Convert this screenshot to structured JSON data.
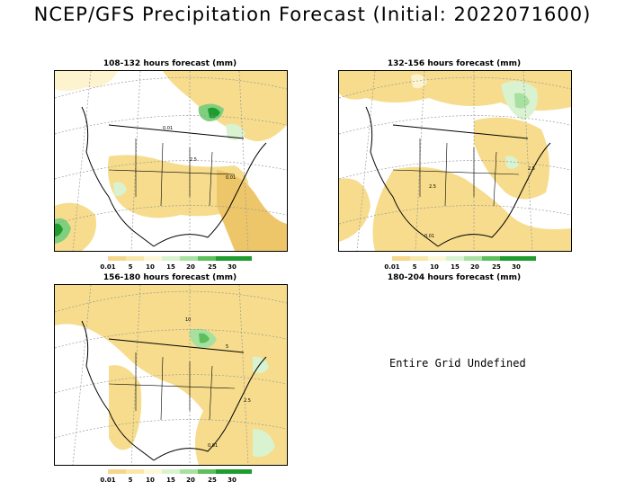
{
  "title": "NCEP/GFS Precipitation Forecast (Initial: 2022071600)",
  "panels": [
    {
      "title": "108-132 hours forecast (mm)"
    },
    {
      "title": "132-156 hours forecast (mm)"
    },
    {
      "title": "156-180 hours forecast (mm)"
    },
    {
      "title": "180-204 hours forecast (mm)"
    }
  ],
  "legend": {
    "labels": [
      "0.01",
      "5",
      "10",
      "15",
      "20",
      "25",
      "30"
    ],
    "colors": [
      "#f5d68a",
      "#f8e7a8",
      "#fdf7d6",
      "#d9f2d0",
      "#a8e0a0",
      "#5cbf5c",
      "#1e9c2e"
    ]
  },
  "map_colors": {
    "land_light": "#fdf4cf",
    "precip_low": "#f6dc8c",
    "precip_mid": "#eec66a",
    "precip_high": "#7fcf7f",
    "precip_max": "#1f9c30"
  },
  "contour_labels": [
    "0.01",
    "2.5",
    "0.01",
    "2.5",
    "2.5",
    "0.01",
    "10",
    "5",
    "2.5",
    "0.01"
  ],
  "undefined_text": "Entire Grid Undefined"
}
